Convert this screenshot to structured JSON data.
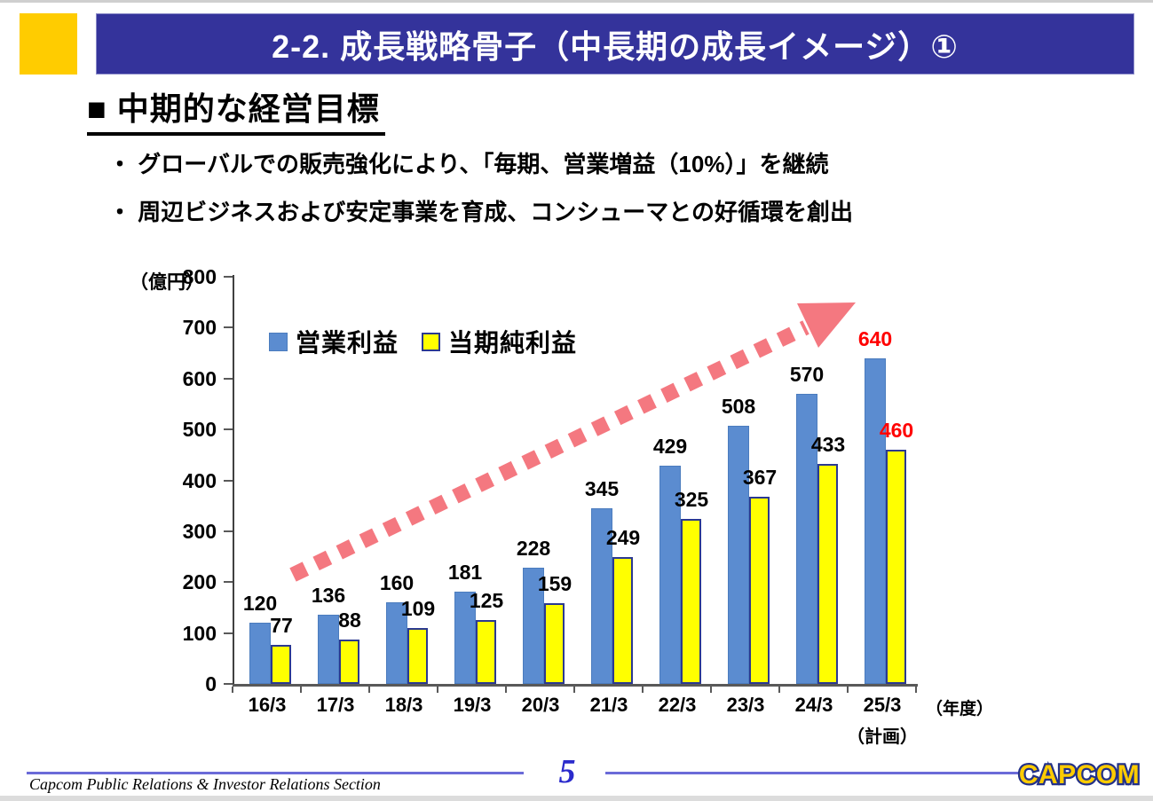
{
  "slide": {
    "header": {
      "title": "2-2.  成長戦略骨子（中長期の成長イメージ）①",
      "bar_color": "#34339B",
      "accent_color": "#FFCC00"
    },
    "heading": "■ 中期的な経営目標",
    "bullets": [
      "・ グローバルでの販売強化により、「毎期、営業増益（10%）」を継続",
      "・ 周辺ビジネスおよび安定事業を育成、コンシューマとの好循環を創出"
    ]
  },
  "chart_data": {
    "type": "bar",
    "title": "",
    "unit_label": "（億円）",
    "xaxis_suffix": "（年度）",
    "categories": [
      "16/3",
      "17/3",
      "18/3",
      "19/3",
      "20/3",
      "21/3",
      "22/3",
      "23/3",
      "24/3",
      "25/3"
    ],
    "last_category_note": "（計画）",
    "series": [
      {
        "name": "営業利益",
        "color": "#5B8CD0",
        "values": [
          120,
          136,
          160,
          181,
          228,
          345,
          429,
          508,
          570,
          640
        ]
      },
      {
        "name": "当期純利益",
        "color": "#FFFF00",
        "values": [
          77,
          88,
          109,
          125,
          159,
          249,
          325,
          367,
          433,
          460
        ]
      }
    ],
    "ylim": [
      0,
      800
    ],
    "ytick_step": 100,
    "grid": false,
    "legend_position": "top-left-inside",
    "value_label_color": "#000000",
    "highlight_last_color": "#FF0000",
    "trend_arrow_color": "#F47880"
  },
  "footer": {
    "left_text": "Capcom Public Relations & Investor Relations Section",
    "page_number": "5",
    "logo_text": "CAPCOM",
    "line_color": "#6B6BD8",
    "logo_fill": "#FFCC00",
    "logo_outline": "#233188"
  }
}
